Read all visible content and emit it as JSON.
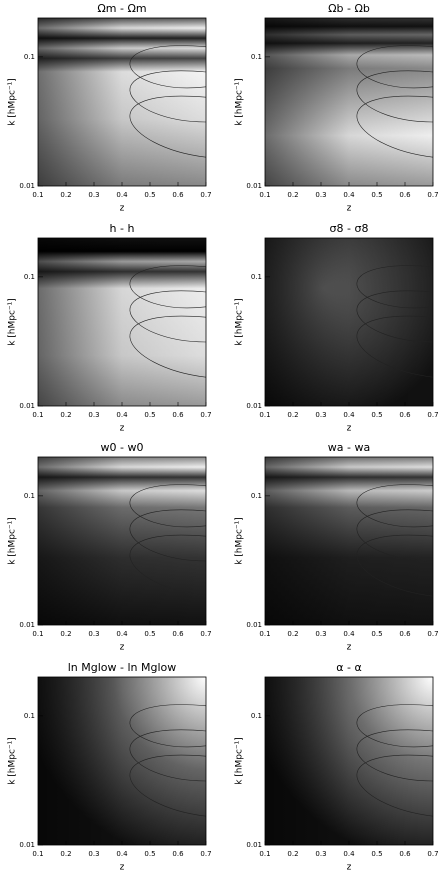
{
  "chart_data": [
    {
      "type": "heatmap",
      "title": "Ωm - Ωm",
      "xlabel": "z",
      "ylabel": "k [hMpc⁻¹]",
      "xlim": [
        0.1,
        0.7
      ],
      "xticks": [
        0.1,
        0.2,
        0.3,
        0.4,
        0.5,
        0.6,
        0.7
      ],
      "ylim": [
        0.01,
        0.2
      ],
      "yticks": [
        0.01,
        0.1
      ],
      "yscale": "log"
    },
    {
      "type": "heatmap",
      "title": "Ωb - Ωb",
      "xlabel": "z",
      "ylabel": "k [hMpc⁻¹]",
      "xlim": [
        0.1,
        0.7
      ],
      "xticks": [
        0.1,
        0.2,
        0.3,
        0.4,
        0.5,
        0.6,
        0.7
      ],
      "ylim": [
        0.01,
        0.2
      ],
      "yticks": [
        0.01,
        0.1
      ],
      "yscale": "log"
    },
    {
      "type": "heatmap",
      "title": "h - h",
      "xlabel": "z",
      "ylabel": "k [hMpc⁻¹]",
      "xlim": [
        0.1,
        0.7
      ],
      "xticks": [
        0.1,
        0.2,
        0.3,
        0.4,
        0.5,
        0.6,
        0.7
      ],
      "ylim": [
        0.01,
        0.2
      ],
      "yticks": [
        0.01,
        0.1
      ],
      "yscale": "log"
    },
    {
      "type": "heatmap",
      "title": "σ8 - σ8",
      "xlabel": "z",
      "ylabel": "k [hMpc⁻¹]",
      "xlim": [
        0.1,
        0.7
      ],
      "xticks": [
        0.1,
        0.2,
        0.3,
        0.4,
        0.5,
        0.6,
        0.7
      ],
      "ylim": [
        0.01,
        0.2
      ],
      "yticks": [
        0.01,
        0.1
      ],
      "yscale": "log"
    },
    {
      "type": "heatmap",
      "title": "w0 - w0",
      "xlabel": "z",
      "ylabel": "k [hMpc⁻¹]",
      "xlim": [
        0.1,
        0.7
      ],
      "xticks": [
        0.1,
        0.2,
        0.3,
        0.4,
        0.5,
        0.6,
        0.7
      ],
      "ylim": [
        0.01,
        0.2
      ],
      "yticks": [
        0.01,
        0.1
      ],
      "yscale": "log"
    },
    {
      "type": "heatmap",
      "title": "wa - wa",
      "xlabel": "z",
      "ylabel": "k [hMpc⁻¹]",
      "xlim": [
        0.1,
        0.7
      ],
      "xticks": [
        0.1,
        0.2,
        0.3,
        0.4,
        0.5,
        0.6,
        0.7
      ],
      "ylim": [
        0.01,
        0.2
      ],
      "yticks": [
        0.01,
        0.1
      ],
      "yscale": "log"
    },
    {
      "type": "heatmap",
      "title": "ln Mglow - ln Mglow",
      "xlabel": "z",
      "ylabel": "k [hMpc⁻¹]",
      "xlim": [
        0.1,
        0.7
      ],
      "xticks": [
        0.1,
        0.2,
        0.3,
        0.4,
        0.5,
        0.6,
        0.7
      ],
      "ylim": [
        0.01,
        0.2
      ],
      "yticks": [
        0.01,
        0.1
      ],
      "yscale": "log"
    },
    {
      "type": "heatmap",
      "title": "α - α",
      "xlabel": "z",
      "ylabel": "k [hMpc⁻¹]",
      "xlim": [
        0.1,
        0.7
      ],
      "xticks": [
        0.1,
        0.2,
        0.3,
        0.4,
        0.5,
        0.6,
        0.7
      ],
      "ylim": [
        0.01,
        0.2
      ],
      "yticks": [
        0.01,
        0.1
      ],
      "yscale": "log"
    }
  ]
}
